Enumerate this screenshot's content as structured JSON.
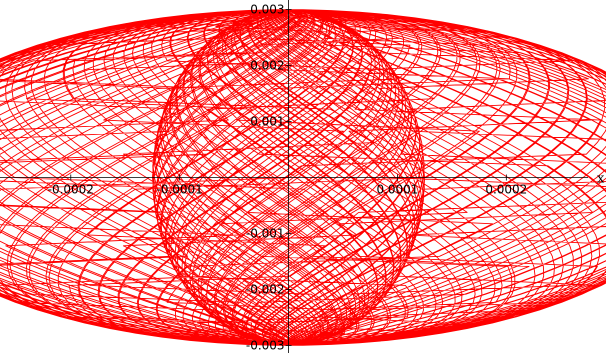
{
  "chart_data": {
    "type": "line",
    "title": "",
    "xlabel": "x",
    "ylabel": "",
    "xlim": [
      -0.000265,
      0.000275
    ],
    "ylim": [
      -0.0031,
      0.0031
    ],
    "x_ticks": [
      {
        "value": -0.0002,
        "label": "-0.0002"
      },
      {
        "value": -0.0001,
        "label": "-0.0001"
      },
      {
        "value": 0.0001,
        "label": "0.0001"
      },
      {
        "value": 0.0002,
        "label": "0.0002"
      }
    ],
    "y_ticks": [
      {
        "value": 0.003,
        "label": "0.003"
      },
      {
        "value": 0.002,
        "label": "0.002"
      },
      {
        "value": 0.001,
        "label": "0.001"
      },
      {
        "value": -0.001,
        "label": "-0.001"
      },
      {
        "value": -0.002,
        "label": "-0.002"
      },
      {
        "value": -0.003,
        "label": "-0.003"
      }
    ],
    "series": [
      {
        "color": "#ff0000",
        "shape": "parametric figure-eight family: two touching lobes centred near x = ±0.00013, spanning x ≈ -0.00025…0.00025 and y ≈ -0.003…0.003",
        "parametric": {
          "x_amplitude": 0.00025,
          "y_amplitude": 0.003,
          "omega_y": 1,
          "omega_x": 2,
          "phase_drift_per_cycle": 0.0565,
          "cycles": 111
        }
      }
    ],
    "grid": false,
    "legend": "none"
  }
}
